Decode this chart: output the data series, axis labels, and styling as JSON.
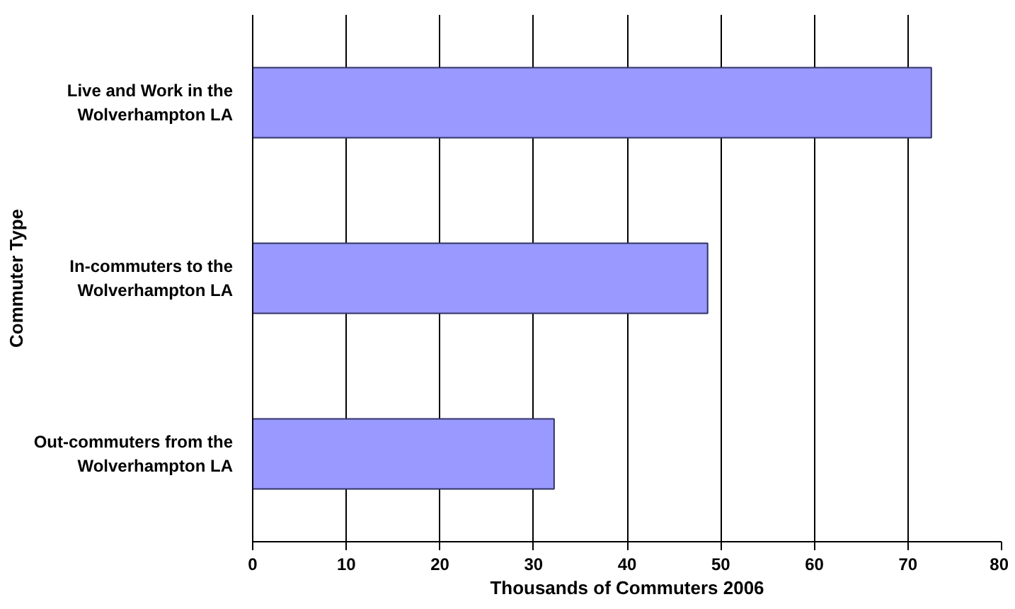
{
  "chart_data": {
    "type": "bar",
    "orientation": "horizontal",
    "categories": [
      "Live and Work in the Wolverhampton LA",
      "In-commuters to the Wolverhampton LA",
      "Out-commuters from the Wolverhampton LA"
    ],
    "values": [
      72.5,
      48.6,
      32.2
    ],
    "color": "#9999ff",
    "xlim": [
      0,
      80
    ],
    "xticks": [
      0,
      10,
      20,
      30,
      40,
      50,
      60,
      70,
      80
    ],
    "xlabel": "Thousands of Commuters 2006",
    "ylabel": "Commuter Type",
    "grid": "x"
  }
}
